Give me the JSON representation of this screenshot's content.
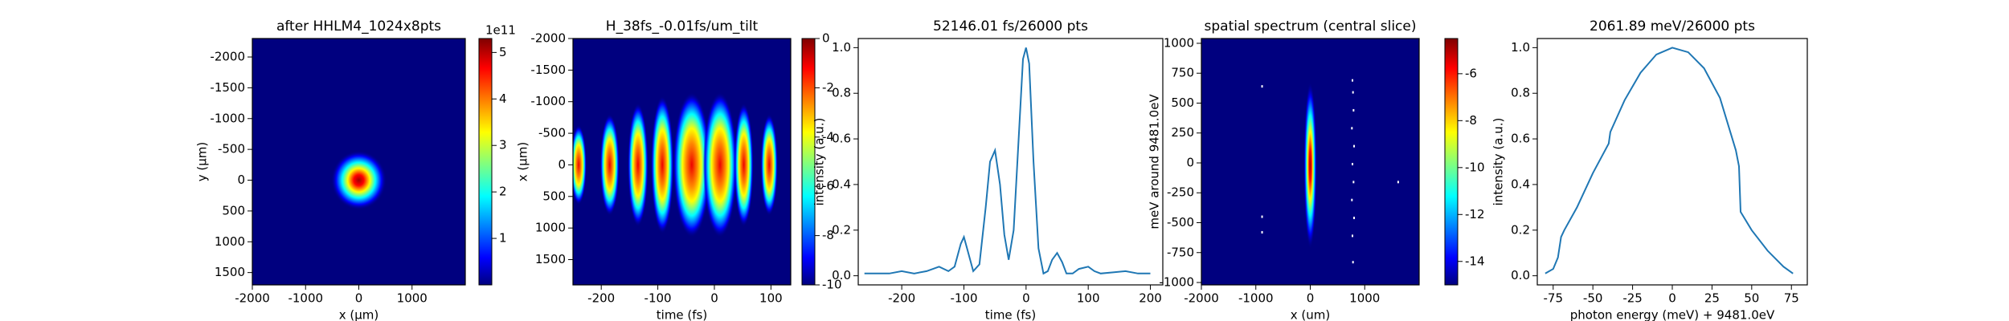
{
  "chart_data": [
    {
      "type": "heatmap",
      "title": "after HHLM4_1024x8pts",
      "xlabel": "x (μm)",
      "ylabel": "y (μm)",
      "xlim": [
        -2000,
        2000
      ],
      "xticks": [
        -2000,
        -1000,
        0,
        1000
      ],
      "ylim": [
        1700,
        -2300
      ],
      "yticks": [
        -2000,
        -1500,
        -1000,
        -500,
        0,
        500,
        1000,
        1500
      ],
      "colorbar": {
        "lim": [
          0,
          5.3
        ],
        "ticks": [
          1,
          2,
          3,
          4,
          5
        ],
        "offset_text": "1e11"
      }
    },
    {
      "type": "heatmap",
      "title": "H_38fs_-0.01fs/um_tilt",
      "xlabel": "time (fs)",
      "ylabel": "x (μm)",
      "xlim": [
        -250,
        135
      ],
      "xticks": [
        -200,
        -100,
        0,
        100
      ],
      "ylim": [
        1900,
        -2000
      ],
      "yticks": [
        -2000,
        -1500,
        -1000,
        -500,
        0,
        500,
        1000,
        1500
      ],
      "colorbar": {
        "lim": [
          -10,
          0
        ],
        "ticks": [
          0,
          -2,
          -4,
          -6,
          -8,
          -10
        ]
      }
    },
    {
      "type": "line",
      "title": "52146.01 fs/26000 pts",
      "xlabel": "time (fs)",
      "ylabel": "intensity (a.u.)",
      "xlim": [
        -270,
        220
      ],
      "xticks": [
        -200,
        -100,
        0,
        100,
        200
      ],
      "ylim": [
        -0.04,
        1.04
      ],
      "yticks": [
        {
          "value": 0,
          "label": "0.0"
        },
        0.2,
        0.4,
        0.6,
        0.8,
        {
          "value": 1,
          "label": "1.0"
        }
      ],
      "color": "#1f77b4",
      "x": [
        -260,
        -240,
        -220,
        -200,
        -180,
        -160,
        -140,
        -125,
        -115,
        -105,
        -100,
        -95,
        -85,
        -75,
        -65,
        -58,
        -50,
        -42,
        -35,
        -28,
        -20,
        -12,
        -5,
        0,
        5,
        12,
        20,
        28,
        35,
        42,
        50,
        58,
        65,
        75,
        85,
        100,
        110,
        120,
        140,
        160,
        180,
        200
      ],
      "values": [
        0.01,
        0.01,
        0.01,
        0.02,
        0.01,
        0.02,
        0.04,
        0.02,
        0.04,
        0.14,
        0.17,
        0.12,
        0.02,
        0.05,
        0.3,
        0.5,
        0.55,
        0.4,
        0.18,
        0.07,
        0.2,
        0.6,
        0.95,
        1.0,
        0.93,
        0.5,
        0.12,
        0.01,
        0.02,
        0.07,
        0.1,
        0.06,
        0.01,
        0.01,
        0.03,
        0.04,
        0.02,
        0.01,
        0.015,
        0.02,
        0.01,
        0.01
      ]
    },
    {
      "type": "heatmap",
      "title": "spatial spectrum (central slice)",
      "xlabel": "x (um)",
      "ylabel": "meV around 9481.0eV",
      "xlim": [
        -2000,
        2000
      ],
      "xticks": [
        -2000,
        -1000,
        0,
        1000
      ],
      "ylim": [
        -1020,
        1040
      ],
      "yticks": [
        1000,
        750,
        500,
        250,
        0,
        -250,
        -500,
        -750,
        -1000
      ],
      "colorbar": {
        "lim": [
          -15,
          -4.5
        ],
        "ticks": [
          -6,
          -8,
          -10,
          -12,
          -14
        ]
      }
    },
    {
      "type": "line",
      "title": "2061.89 meV/26000 pts",
      "xlabel": "photon energy (meV) + 9481.0eV",
      "ylabel": "intensity (a.u.)",
      "xlim": [
        -85,
        85
      ],
      "xticks": [
        -75,
        -50,
        -25,
        0,
        25,
        50,
        75
      ],
      "ylim": [
        -0.04,
        1.04
      ],
      "yticks": [
        {
          "value": 0,
          "label": "0.0"
        },
        0.2,
        0.4,
        0.6,
        0.8,
        {
          "value": 1,
          "label": "1.0"
        }
      ],
      "color": "#1f77b4",
      "x": [
        -80,
        -75,
        -72,
        -70,
        -68,
        -60,
        -50,
        -40,
        -39,
        -30,
        -20,
        -10,
        0,
        10,
        20,
        30,
        40,
        42,
        43,
        50,
        60,
        70,
        76
      ],
      "values": [
        0.01,
        0.03,
        0.08,
        0.17,
        0.2,
        0.3,
        0.45,
        0.58,
        0.63,
        0.77,
        0.89,
        0.97,
        1.0,
        0.98,
        0.91,
        0.78,
        0.55,
        0.48,
        0.28,
        0.2,
        0.11,
        0.04,
        0.01
      ]
    }
  ]
}
